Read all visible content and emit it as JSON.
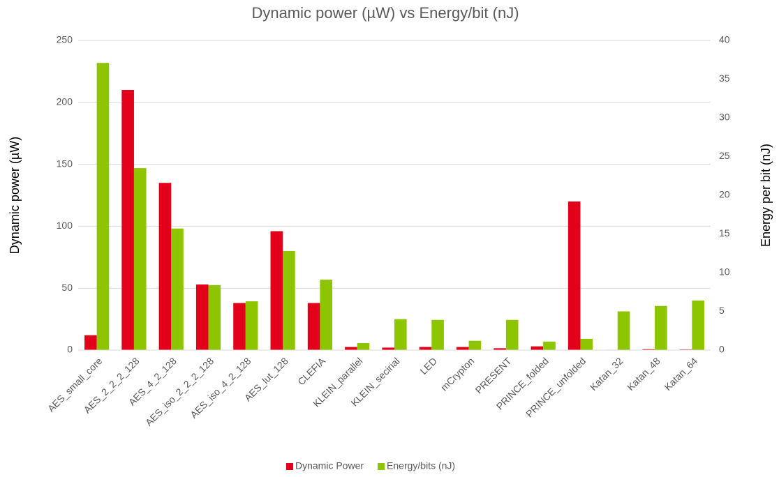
{
  "chart_data": {
    "type": "bar",
    "title": "Dynamic power (µW) vs Energy/bit (nJ)",
    "ylabel": "Dynamic power (µW)",
    "y2label": "Energy per bit (nJ)",
    "categories": [
      "AES_small_core",
      "AES_2_2_2_128",
      "AES_4_2_128",
      "AES_iso_2_2_2_128",
      "AES_iso_4_2_128",
      "AES_lut_128",
      "CLEFIA",
      "KLEIN_parallel",
      "KLEIN_secirial",
      "LED",
      "mCrypton",
      "PRESENT",
      "PRINCE_folded",
      "PRINCE_unfolded",
      "Katan_32",
      "Katan_48",
      "Katan_64"
    ],
    "series": [
      {
        "name": "Dynamic Power",
        "color": "#e3001b",
        "values": [
          12,
          210,
          135,
          53,
          38,
          96,
          38,
          2.5,
          2,
          2.5,
          2.5,
          1.5,
          3,
          120,
          0.3,
          0.7,
          0.5
        ]
      },
      {
        "name": "Energy/bits (nJ)",
        "color": "#8dc500",
        "axis": "y2",
        "values": [
          37.1,
          23.5,
          15.7,
          8.4,
          6.3,
          12.8,
          9.1,
          0.9,
          4.0,
          3.9,
          1.2,
          3.9,
          1.1,
          1.45,
          5.0,
          5.7,
          6.4
        ]
      }
    ],
    "ylim": [
      0,
      250
    ],
    "yticks": [
      0,
      50,
      100,
      150,
      200,
      250
    ],
    "y2lim": [
      0,
      40
    ],
    "y2ticks": [
      0,
      5,
      10,
      15,
      20,
      25,
      30,
      35,
      40
    ],
    "grid": true,
    "legend": "bottom"
  }
}
